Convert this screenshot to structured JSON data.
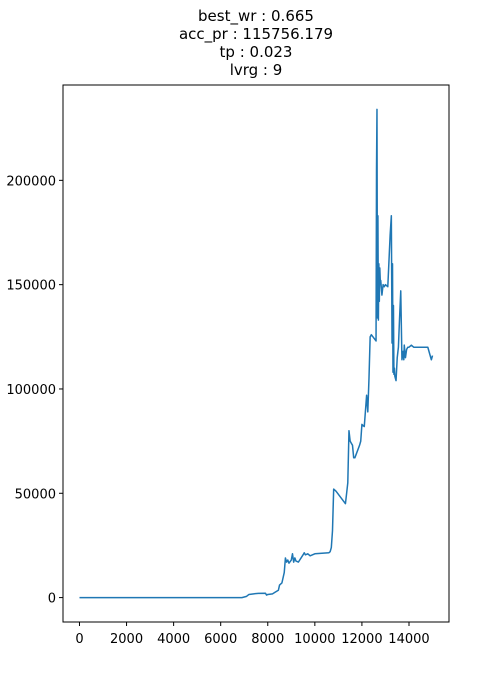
{
  "chart_data": {
    "type": "line",
    "title_lines": [
      "best_wr : 0.665",
      "acc_pr : 115756.179",
      "tp : 0.023",
      "lvrg : 9"
    ],
    "xlabel": "",
    "ylabel": "",
    "xlim": [
      -700,
      15700
    ],
    "ylim": [
      -11700,
      245700
    ],
    "x_ticks": [
      0,
      2000,
      4000,
      6000,
      8000,
      10000,
      12000,
      14000
    ],
    "x_tick_labels": [
      "0",
      "2000",
      "4000",
      "6000",
      "8000",
      "10000",
      "12000",
      "14000"
    ],
    "y_ticks": [
      0,
      50000,
      100000,
      150000,
      200000
    ],
    "y_tick_labels": [
      "0",
      "50000",
      "100000",
      "150000",
      "200000"
    ],
    "grid": false,
    "series": [
      {
        "color": "#1f77b4",
        "x": [
          0,
          6900,
          7000,
          7100,
          7200,
          7400,
          7600,
          7900,
          7950,
          8000,
          8200,
          8300,
          8450,
          8500,
          8600,
          8700,
          8750,
          8800,
          8850,
          8900,
          9000,
          9050,
          9100,
          9150,
          9200,
          9300,
          9500,
          9550,
          9600,
          9700,
          9800,
          10000,
          10600,
          10650,
          10700,
          10750,
          10800,
          10900,
          11300,
          11350,
          11400,
          11450,
          11500,
          11550,
          11600,
          11650,
          11700,
          11900,
          11950,
          12000,
          12100,
          12200,
          12250,
          12300,
          12350,
          12400,
          12600,
          12620,
          12640,
          12660,
          12680,
          12700,
          12720,
          12740,
          12760,
          12780,
          12800,
          12850,
          12900,
          12950,
          13000,
          13100,
          13200,
          13250,
          13280,
          13300,
          13320,
          13340,
          13360,
          13380,
          13400,
          13450,
          13500,
          13550,
          13600,
          13650,
          13700,
          13750,
          13780,
          13800,
          13850,
          13900,
          13950,
          14000,
          14100,
          14200,
          14400,
          14600,
          14800,
          14950,
          15000
        ],
        "y": [
          0,
          0,
          300,
          600,
          1500,
          1800,
          2000,
          2100,
          1200,
          1500,
          1800,
          2500,
          3500,
          6000,
          7000,
          12000,
          19000,
          17000,
          18000,
          16500,
          18000,
          21000,
          17000,
          19000,
          17500,
          17000,
          20500,
          21500,
          20500,
          21000,
          20000,
          21000,
          21500,
          22000,
          24000,
          32000,
          52000,
          51000,
          45000,
          50000,
          55000,
          80000,
          75000,
          74000,
          73000,
          67000,
          67000,
          73000,
          75000,
          83000,
          82000,
          97000,
          89000,
          105000,
          125000,
          126000,
          123000,
          205000,
          234000,
          134000,
          183000,
          133000,
          160000,
          142000,
          158000,
          152000,
          152000,
          145000,
          150000,
          149000,
          150000,
          149000,
          174000,
          183000,
          122000,
          160000,
          108000,
          140000,
          107000,
          110000,
          106000,
          104000,
          115000,
          120000,
          134000,
          147000,
          114000,
          118000,
          114000,
          121000,
          115000,
          119000,
          120000,
          120000,
          121000,
          120000,
          120000,
          120000,
          120000,
          114000,
          116000
        ]
      }
    ]
  }
}
